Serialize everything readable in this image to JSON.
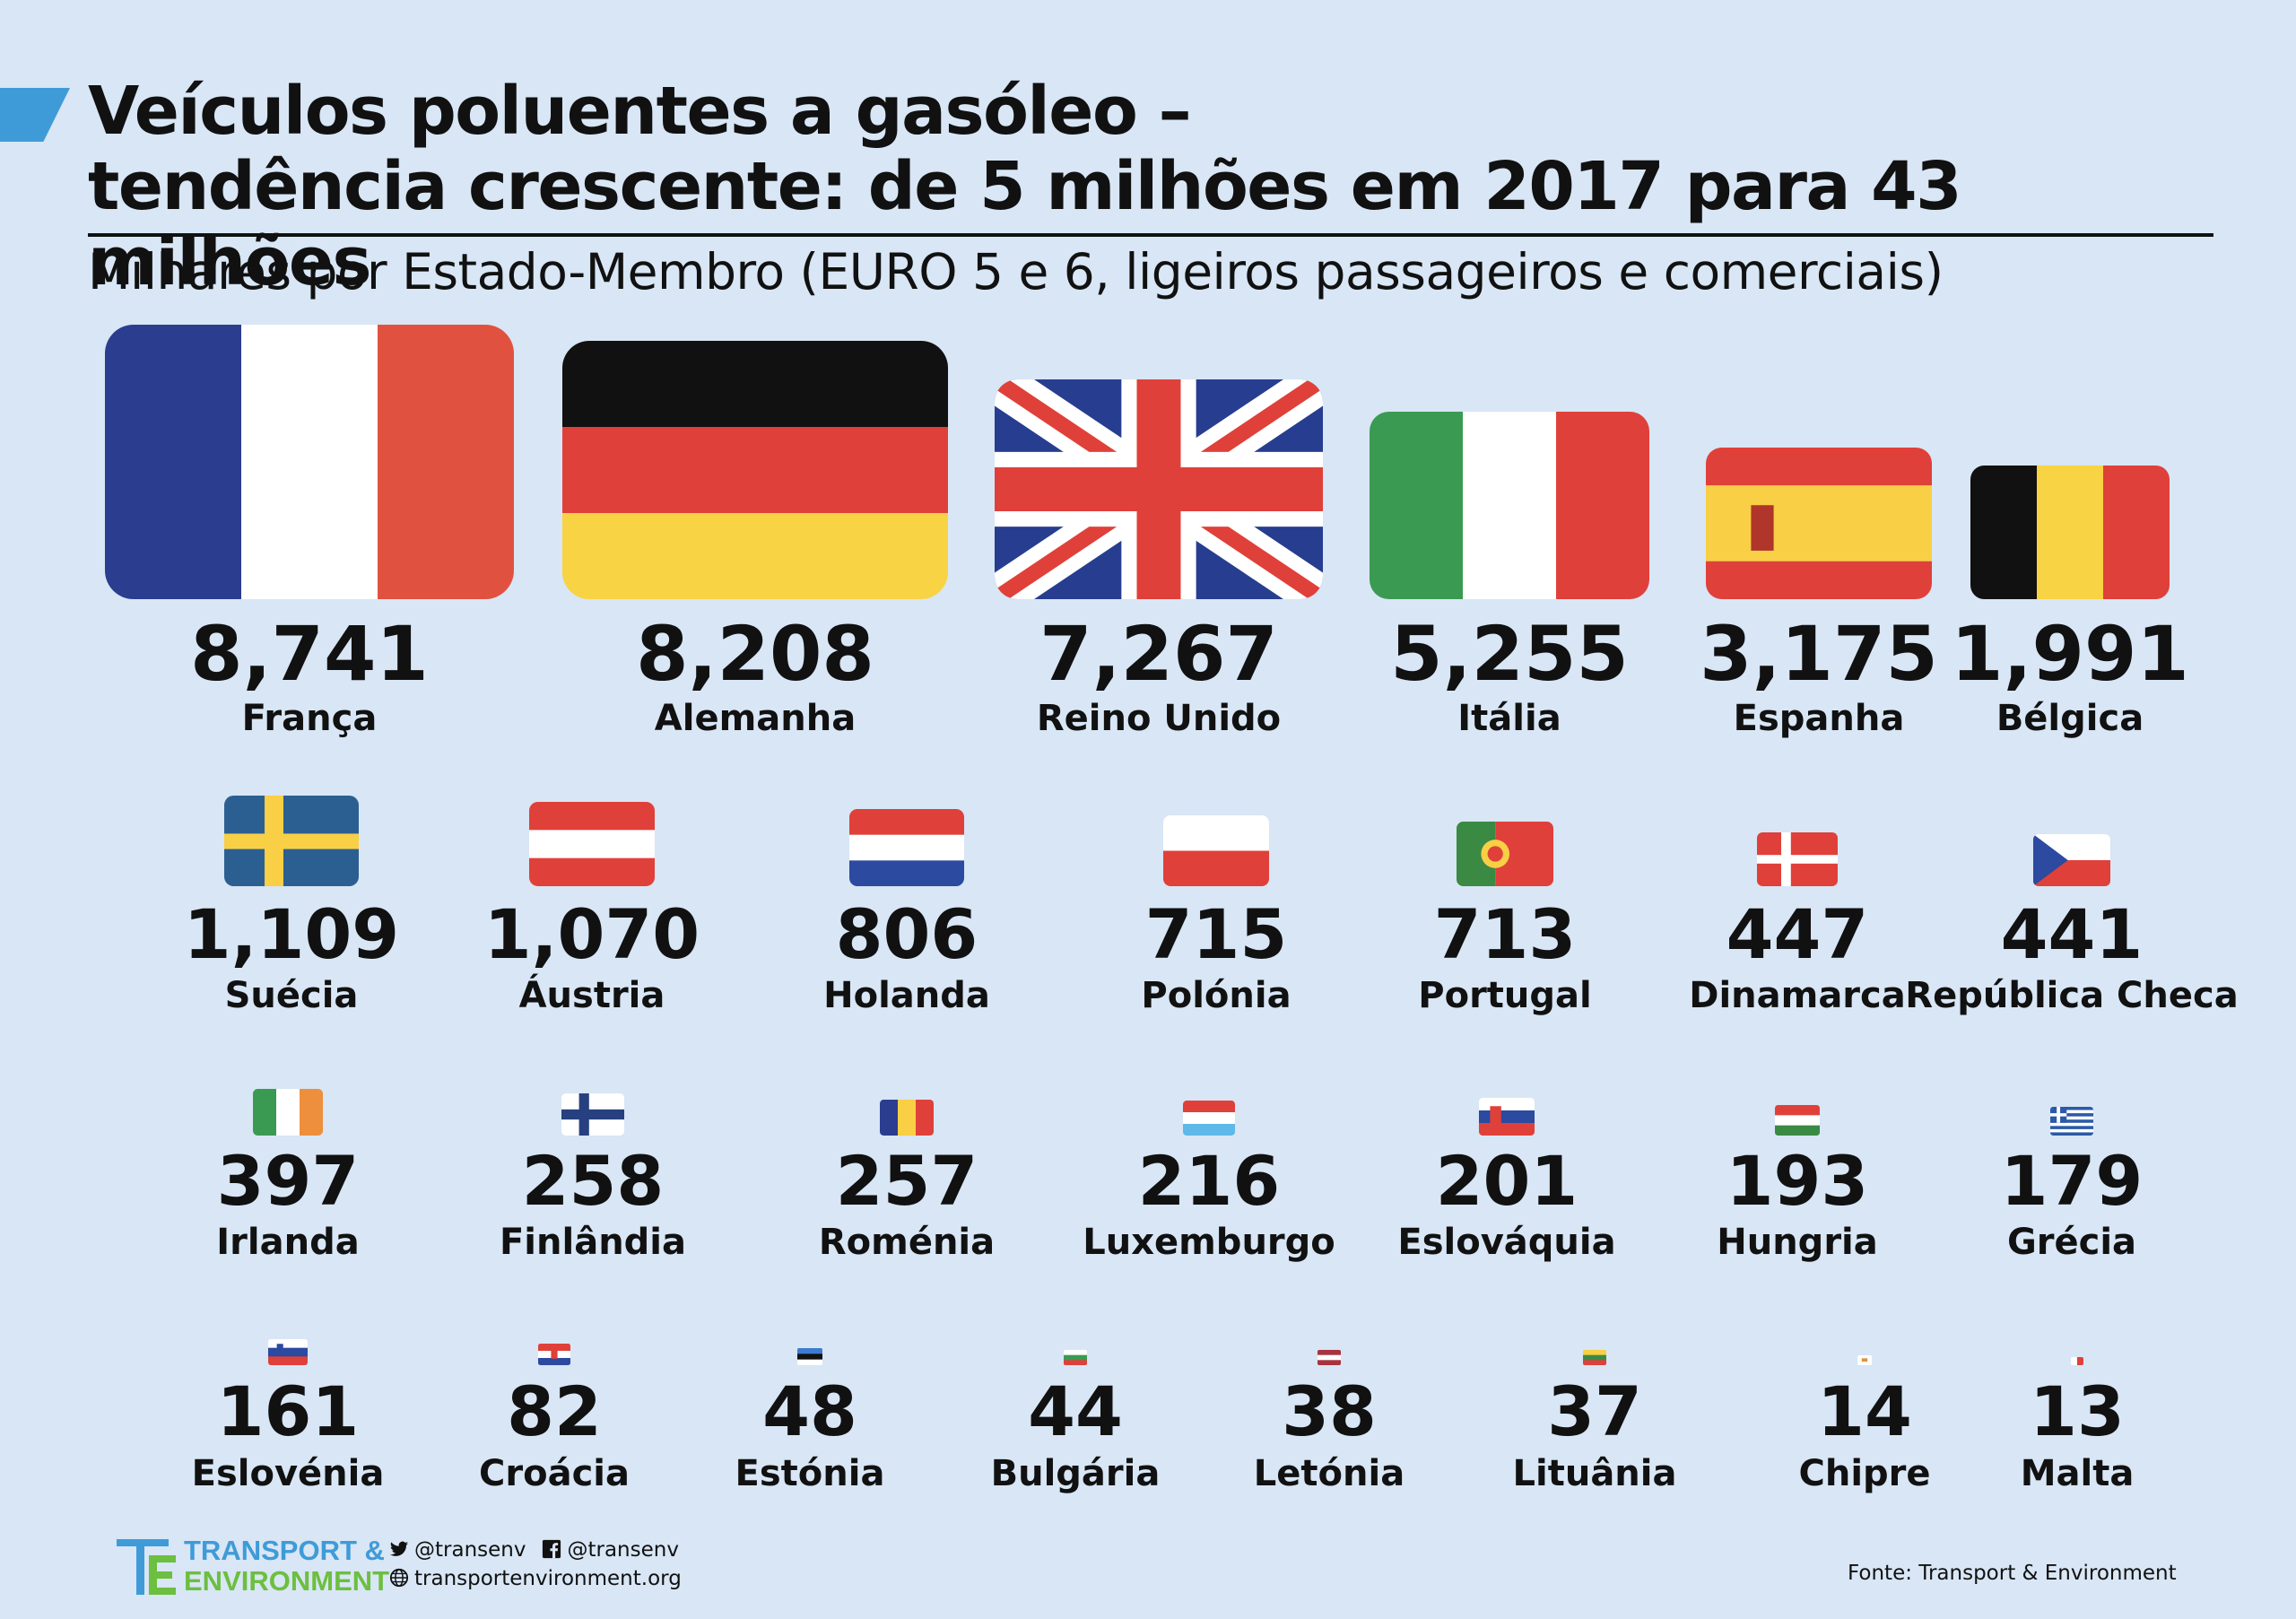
{
  "title": {
    "line1": "Veículos poluentes a gasóleo –",
    "line2": "tendência crescente: de 5 milhões em 2017 para 43 milhões"
  },
  "subtitle": "Milhares por Estado-Membro (EURO 5 e 6, ligeiros passageiros e comerciais)",
  "chart_data": {
    "type": "bar",
    "unit": "Milhares",
    "categories": [
      "França",
      "Alemanha",
      "Reino Unido",
      "Itália",
      "Espanha",
      "Bélgica",
      "Suécia",
      "Áustria",
      "Holanda",
      "Polónia",
      "Portugal",
      "Dinamarca",
      "República Checa",
      "Irlanda",
      "Finlândia",
      "Roménia",
      "Luxemburgo",
      "Eslováquia",
      "Hungria",
      "Grécia",
      "Eslovénia",
      "Croácia",
      "Estónia",
      "Bulgária",
      "Letónia",
      "Lituânia",
      "Chipre",
      "Malta"
    ],
    "values": [
      8741,
      8208,
      7267,
      5255,
      3175,
      1991,
      1109,
      1070,
      806,
      715,
      713,
      447,
      441,
      397,
      258,
      257,
      216,
      201,
      193,
      179,
      161,
      82,
      48,
      44,
      38,
      37,
      14,
      13
    ],
    "value_labels": [
      "8,741",
      "8,208",
      "7,267",
      "5,255",
      "3,175",
      "1,991",
      "1,109",
      "1,070",
      "806",
      "715",
      "713",
      "447",
      "441",
      "397",
      "258",
      "257",
      "216",
      "201",
      "193",
      "179",
      "161",
      "82",
      "48",
      "44",
      "38",
      "37",
      "14",
      "13"
    ],
    "flags": [
      "france-flag",
      "germany-flag",
      "uk-flag",
      "italy-flag",
      "spain-flag",
      "belgium-flag",
      "sweden-flag",
      "austria-flag",
      "netherlands-flag",
      "poland-flag",
      "portugal-flag",
      "denmark-flag",
      "czechia-flag",
      "ireland-flag",
      "finland-flag",
      "romania-flag",
      "luxembourg-flag",
      "slovakia-flag",
      "hungary-flag",
      "greece-flag",
      "slovenia-flag",
      "croatia-flag",
      "estonia-flag",
      "bulgaria-flag",
      "latvia-flag",
      "lithuania-flag",
      "cyprus-flag",
      "malta-flag"
    ],
    "encoding": "flag area proportional to value"
  },
  "footer": {
    "logo_line1": "TRANSPORT &",
    "logo_line2": "ENVIRONMENT",
    "twitter": "@transenv",
    "facebook": "@transenv",
    "website": "transportenvironment.org",
    "source": "Fonte: Transport & Environment"
  },
  "colors": {
    "background": "#d8e6f5",
    "accent": "#3f9bd8",
    "logo_blue": "#3f9bd8",
    "logo_green": "#6cbf3f"
  }
}
